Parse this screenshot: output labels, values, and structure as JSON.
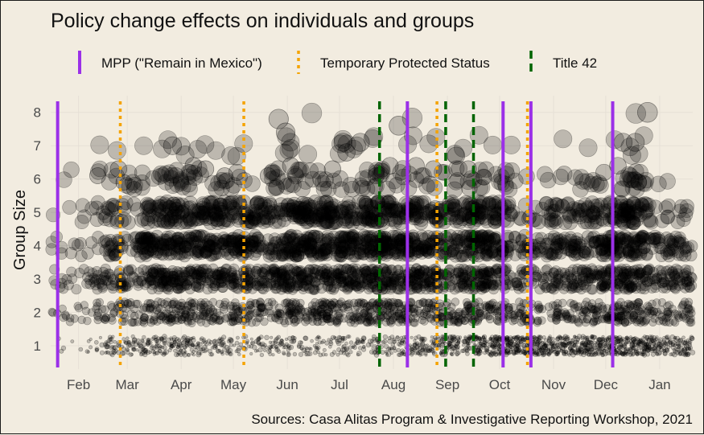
{
  "chart_data": {
    "type": "scatter",
    "title": "Policy change effects on individuals and groups",
    "ylabel": "Group Size",
    "xlabel": "",
    "caption": "Sources: Casa Alitas Program & Investigative Reporting Workshop, 2021",
    "x_range": [
      "2021-01-16",
      "2022-01-20"
    ],
    "ylim": [
      0.3,
      8.5
    ],
    "y_ticks": [
      1,
      2,
      3,
      4,
      5,
      6,
      7,
      8
    ],
    "x_ticks": [
      {
        "date": "2021-02-01",
        "label": "Feb"
      },
      {
        "date": "2021-03-01",
        "label": "Mar"
      },
      {
        "date": "2021-04-01",
        "label": "Apr"
      },
      {
        "date": "2021-05-01",
        "label": "May"
      },
      {
        "date": "2021-06-01",
        "label": "Jun"
      },
      {
        "date": "2021-07-01",
        "label": "Jul"
      },
      {
        "date": "2021-08-01",
        "label": "Aug"
      },
      {
        "date": "2021-09-01",
        "label": "Sep"
      },
      {
        "date": "2021-10-01",
        "label": "Oct"
      },
      {
        "date": "2021-11-01",
        "label": "Nov"
      },
      {
        "date": "2021-12-01",
        "label": "Dec"
      },
      {
        "date": "2022-01-01",
        "label": "Jan"
      }
    ],
    "grid": true,
    "legend_position": "top",
    "point_style": {
      "fill": "#000000",
      "fill_opacity": 0.22,
      "stroke": "#000000"
    },
    "policy_events": [
      {
        "name": "MPP (\"Remain in Mexico\")",
        "color": "#9b30e8",
        "dash": "solid",
        "dates": [
          "2021-01-20",
          "2021-08-09",
          "2021-10-03",
          "2021-10-19",
          "2021-12-05"
        ]
      },
      {
        "name": "Temporary Protected Status",
        "color": "#f5a300",
        "dash": "dotted",
        "dates": [
          "2021-02-25",
          "2021-05-07",
          "2021-08-26",
          "2021-10-17"
        ]
      },
      {
        "name": "Title 42",
        "color": "#006400",
        "dash": "dashed",
        "dates": [
          "2021-07-24",
          "2021-08-31",
          "2021-09-16"
        ]
      }
    ],
    "density_bands": [
      {
        "group_size": 1,
        "intensity": [
          0.05,
          0.35,
          0.55,
          0.4,
          0.3,
          0.3,
          0.3,
          0.45,
          0.6,
          0.9,
          0.95,
          0.9,
          0.95,
          0.7
        ]
      },
      {
        "group_size": 2,
        "intensity": [
          0.15,
          0.4,
          0.7,
          0.6,
          0.55,
          0.75,
          0.8,
          0.8,
          0.6,
          0.65,
          0.4,
          0.6,
          0.8,
          0.5
        ]
      },
      {
        "group_size": 3,
        "intensity": [
          0.2,
          0.45,
          0.85,
          0.8,
          0.7,
          0.9,
          0.9,
          0.95,
          0.75,
          0.8,
          0.4,
          0.6,
          0.9,
          0.6
        ]
      },
      {
        "group_size": 4,
        "intensity": [
          0.1,
          0.35,
          0.8,
          0.7,
          0.6,
          0.85,
          0.85,
          0.9,
          0.6,
          0.8,
          0.35,
          0.5,
          0.85,
          0.4
        ]
      },
      {
        "group_size": 5,
        "intensity": [
          0.05,
          0.2,
          0.5,
          0.55,
          0.45,
          0.6,
          0.55,
          0.6,
          0.4,
          0.55,
          0.2,
          0.35,
          0.55,
          0.15
        ]
      },
      {
        "group_size": 6,
        "intensity": [
          0.02,
          0.1,
          0.15,
          0.15,
          0.1,
          0.15,
          0.1,
          0.15,
          0.1,
          0.15,
          0.05,
          0.1,
          0.15,
          0.02
        ]
      },
      {
        "group_size": 7,
        "intensity": [
          0.0,
          0.02,
          0.04,
          0.03,
          0.02,
          0.05,
          0.05,
          0.03,
          0.03,
          0.02,
          0.01,
          0.02,
          0.04,
          0.0
        ]
      },
      {
        "group_size": 8,
        "intensity": [
          0.0,
          0.0,
          0.0,
          0.0,
          0.0,
          0.01,
          0.0,
          0.01,
          0.0,
          0.0,
          0.0,
          0.0,
          0.01,
          0.0
        ]
      }
    ],
    "highlight_points": [
      {
        "date": "2021-02-12",
        "y": 6.1
      },
      {
        "date": "2021-02-24",
        "y": 6.3
      },
      {
        "date": "2021-02-27",
        "y": 5.9
      },
      {
        "date": "2021-03-05",
        "y": 5.7
      },
      {
        "date": "2021-03-27",
        "y": 7.0
      },
      {
        "date": "2021-04-08",
        "y": 6.4
      },
      {
        "date": "2021-04-15",
        "y": 6.3
      },
      {
        "date": "2021-04-26",
        "y": 6.1
      },
      {
        "date": "2021-05-03",
        "y": 6.2
      },
      {
        "date": "2021-05-21",
        "y": 6.1
      },
      {
        "date": "2021-05-27",
        "y": 7.8
      },
      {
        "date": "2021-05-31",
        "y": 7.4
      },
      {
        "date": "2021-06-03",
        "y": 6.4
      },
      {
        "date": "2021-06-27",
        "y": 6.3
      },
      {
        "date": "2021-07-03",
        "y": 7.1
      },
      {
        "date": "2021-07-05",
        "y": 6.8
      },
      {
        "date": "2021-07-13",
        "y": 7.1
      },
      {
        "date": "2021-07-22",
        "y": 6.1
      },
      {
        "date": "2021-07-30",
        "y": 6.4
      },
      {
        "date": "2021-08-04",
        "y": 7.6
      },
      {
        "date": "2021-08-14",
        "y": 6.4
      },
      {
        "date": "2021-08-24",
        "y": 6.3
      },
      {
        "date": "2021-09-06",
        "y": 6.7
      },
      {
        "date": "2021-09-13",
        "y": 6.3
      },
      {
        "date": "2021-11-30",
        "y": 6.2
      },
      {
        "date": "2021-12-11",
        "y": 7.1
      },
      {
        "date": "2021-12-18",
        "y": 7.1
      },
      {
        "date": "2021-12-25",
        "y": 8.0
      },
      {
        "date": "2021-12-20",
        "y": 5.9
      },
      {
        "date": "2021-12-08",
        "y": 6.4
      }
    ]
  }
}
